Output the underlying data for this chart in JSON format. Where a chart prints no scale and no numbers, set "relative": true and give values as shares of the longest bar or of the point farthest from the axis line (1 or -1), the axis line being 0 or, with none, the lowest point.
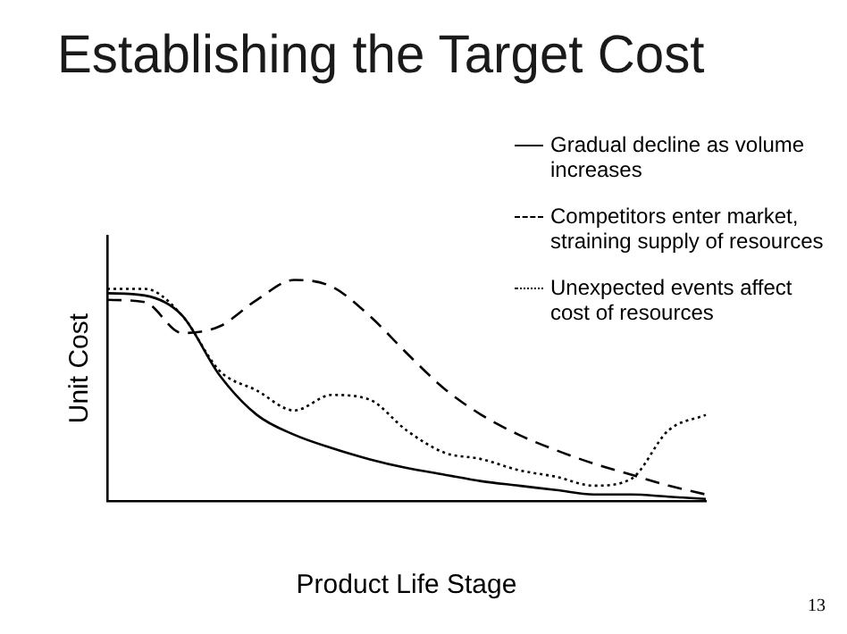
{
  "chart_data": {
    "type": "line",
    "title": "Establishing the Target Cost",
    "xlabel": "Product Life Stage",
    "ylabel": "Unit Cost",
    "relative": true,
    "legend": "top right",
    "marker": "none",
    "grid": false,
    "annotations": [
      "13"
    ],
    "categories": [
      null,
      null,
      null,
      null,
      null,
      null,
      null,
      null,
      null,
      null,
      null,
      null,
      null,
      null,
      null,
      null,
      null
    ],
    "series": [
      {
        "name": "Gradual decline as volume increases",
        "color": "#000000",
        "line_style": "solid",
        "values": [
          0.94,
          0.93,
          0.84,
          0.57,
          0.39,
          0.3,
          0.24,
          0.19,
          0.15,
          0.12,
          0.09,
          0.07,
          0.05,
          0.03,
          0.03,
          0.02,
          0.01
        ]
      },
      {
        "name": "Competitors enter market, straining supply of resources",
        "color": "#000000",
        "line_style": "dashed",
        "values": [
          0.91,
          0.9,
          0.76,
          0.79,
          0.91,
          1,
          0.97,
          0.84,
          0.67,
          0.51,
          0.39,
          0.3,
          0.23,
          0.17,
          0.12,
          0.07,
          0.03
        ]
      },
      {
        "name": "Unexpected events affect cost of resources",
        "color": "#000000",
        "line_style": "dotted",
        "values": [
          0.96,
          0.96,
          0.84,
          0.59,
          0.5,
          0.41,
          0.48,
          0.46,
          0.32,
          0.22,
          0.19,
          0.14,
          0.11,
          0.07,
          0.1,
          0.32,
          0.39
        ]
      }
    ]
  }
}
